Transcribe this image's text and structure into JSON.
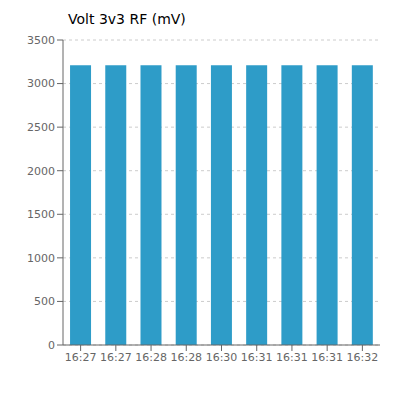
{
  "chart_data": {
    "type": "bar",
    "title": "Volt 3v3 RF (mV)",
    "categories": [
      "16:27",
      "16:27",
      "16:28",
      "16:28",
      "16:30",
      "16:31",
      "16:31",
      "16:31",
      "16:32"
    ],
    "values": [
      3209,
      3209,
      3209,
      3209,
      3209,
      3209,
      3209,
      3209,
      3209
    ],
    "color": "#2E9CC8",
    "ylim": [
      0,
      3500
    ],
    "yticks": [
      0,
      500,
      1000,
      1500,
      2000,
      2500,
      3000,
      3500
    ],
    "grid": true
  }
}
